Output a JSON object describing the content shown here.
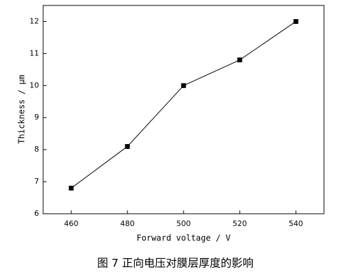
{
  "chart_data": {
    "type": "line",
    "x": [
      460,
      480,
      500,
      520,
      540
    ],
    "series": [
      {
        "color": "#000000",
        "values": [
          6.8,
          8.1,
          10.0,
          10.8,
          12.0
        ]
      }
    ],
    "xlim": [
      450,
      550
    ],
    "xticks": [
      460,
      480,
      500,
      520,
      540
    ],
    "ylim": [
      6,
      12.5
    ],
    "yticks": [
      6,
      7,
      8,
      9,
      10,
      11,
      12
    ],
    "x_label": "Forward voltage / V",
    "y_label": "Thickness / μm",
    "caption": "图 7   正向电压对膜层厚度的影响"
  }
}
